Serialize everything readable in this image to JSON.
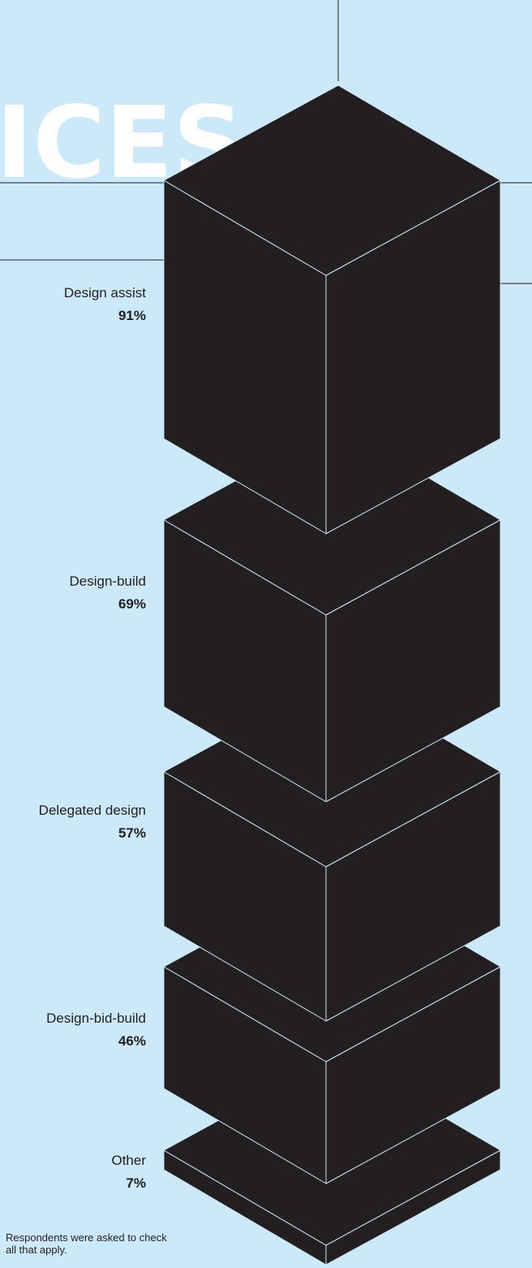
{
  "header": {
    "title_partial": "ICES"
  },
  "chart_data": {
    "type": "bar",
    "categories": [
      "Design assist",
      "Design-build",
      "Delegated design",
      "Design-bid-build",
      "Other"
    ],
    "values": [
      91,
      69,
      57,
      46,
      7
    ],
    "value_labels": [
      "91%",
      "69%",
      "57%",
      "46%",
      "7%"
    ],
    "unit": "%",
    "orientation": "stacked isometric cubes",
    "colors": {
      "block": "#231f20",
      "edge": "#cbe9f8",
      "background": "#cbe9f8",
      "title": "#ffffff",
      "rule": "#231f20"
    }
  },
  "footnote": "Respondents were asked to check all that apply."
}
